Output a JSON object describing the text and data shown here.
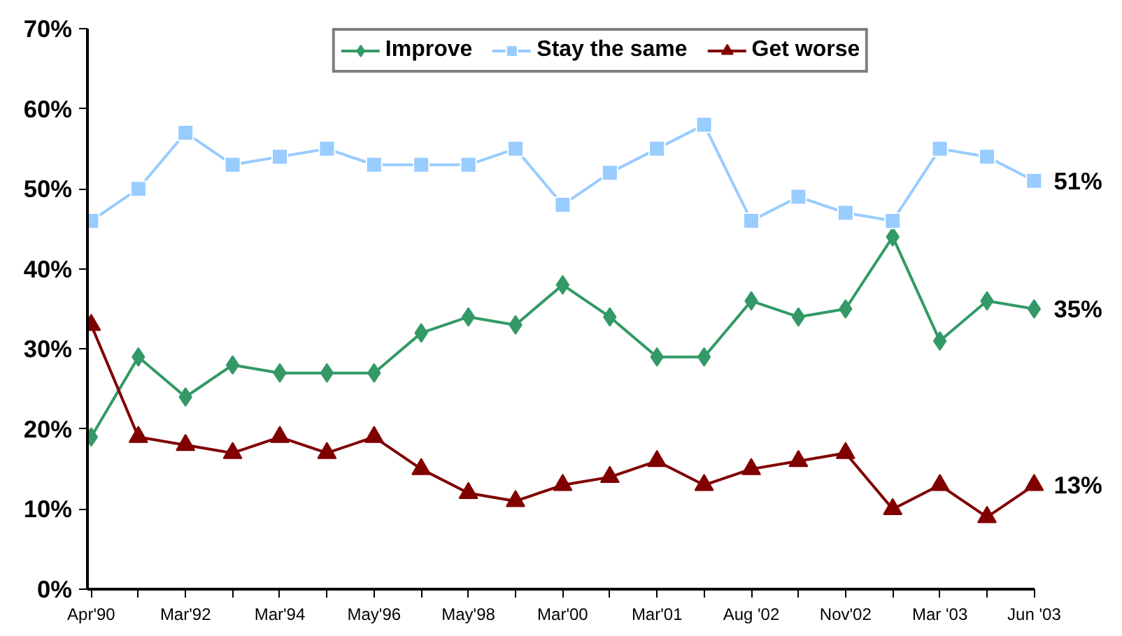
{
  "chart_data": {
    "type": "line",
    "categories": [
      "Apr'90",
      null,
      "Mar'92",
      null,
      "Mar'94",
      null,
      "May'96",
      null,
      "May'98",
      null,
      "Mar'00",
      null,
      "Mar'01",
      null,
      "Aug '02",
      null,
      "Nov'02",
      null,
      "Mar '03",
      null,
      "Jun '03"
    ],
    "series": [
      {
        "name": "Improve",
        "color": "#339966",
        "marker": "diamond",
        "values": [
          19,
          29,
          24,
          28,
          27,
          27,
          27,
          32,
          34,
          33,
          38,
          34,
          29,
          29,
          36,
          34,
          35,
          44,
          31,
          36,
          35
        ],
        "value_labels": [
          null,
          null,
          null,
          null,
          null,
          null,
          null,
          null,
          null,
          null,
          null,
          null,
          null,
          null,
          null,
          null,
          null,
          null,
          null,
          null,
          "35%"
        ]
      },
      {
        "name": "Stay the same",
        "color": "#99ccff",
        "marker": "square",
        "values": [
          46,
          50,
          57,
          53,
          54,
          55,
          53,
          53,
          53,
          55,
          48,
          52,
          55,
          58,
          46,
          49,
          47,
          46,
          55,
          54,
          51
        ],
        "value_labels": [
          null,
          null,
          null,
          null,
          null,
          null,
          null,
          null,
          null,
          null,
          null,
          null,
          null,
          null,
          null,
          null,
          null,
          null,
          null,
          null,
          "51%"
        ]
      },
      {
        "name": "Get worse",
        "color": "#800000",
        "marker": "triangle",
        "values": [
          33,
          19,
          18,
          17,
          19,
          17,
          19,
          15,
          12,
          11,
          13,
          14,
          16,
          13,
          15,
          16,
          17,
          10,
          13,
          9,
          13
        ],
        "value_labels": [
          null,
          null,
          null,
          null,
          null,
          null,
          null,
          null,
          null,
          null,
          null,
          null,
          null,
          null,
          null,
          null,
          null,
          null,
          null,
          null,
          "13%"
        ]
      }
    ],
    "ylim": [
      0,
      70
    ],
    "yticks": [
      {
        "value": 0,
        "label": "0%"
      },
      {
        "value": 10,
        "label": "10%"
      },
      {
        "value": 20,
        "label": "20%"
      },
      {
        "value": 30,
        "label": "30%"
      },
      {
        "value": 40,
        "label": "40%"
      },
      {
        "value": 50,
        "label": "50%"
      },
      {
        "value": 60,
        "label": "60%"
      },
      {
        "value": 70,
        "label": "70%"
      }
    ],
    "grid": false,
    "legend": "top"
  }
}
